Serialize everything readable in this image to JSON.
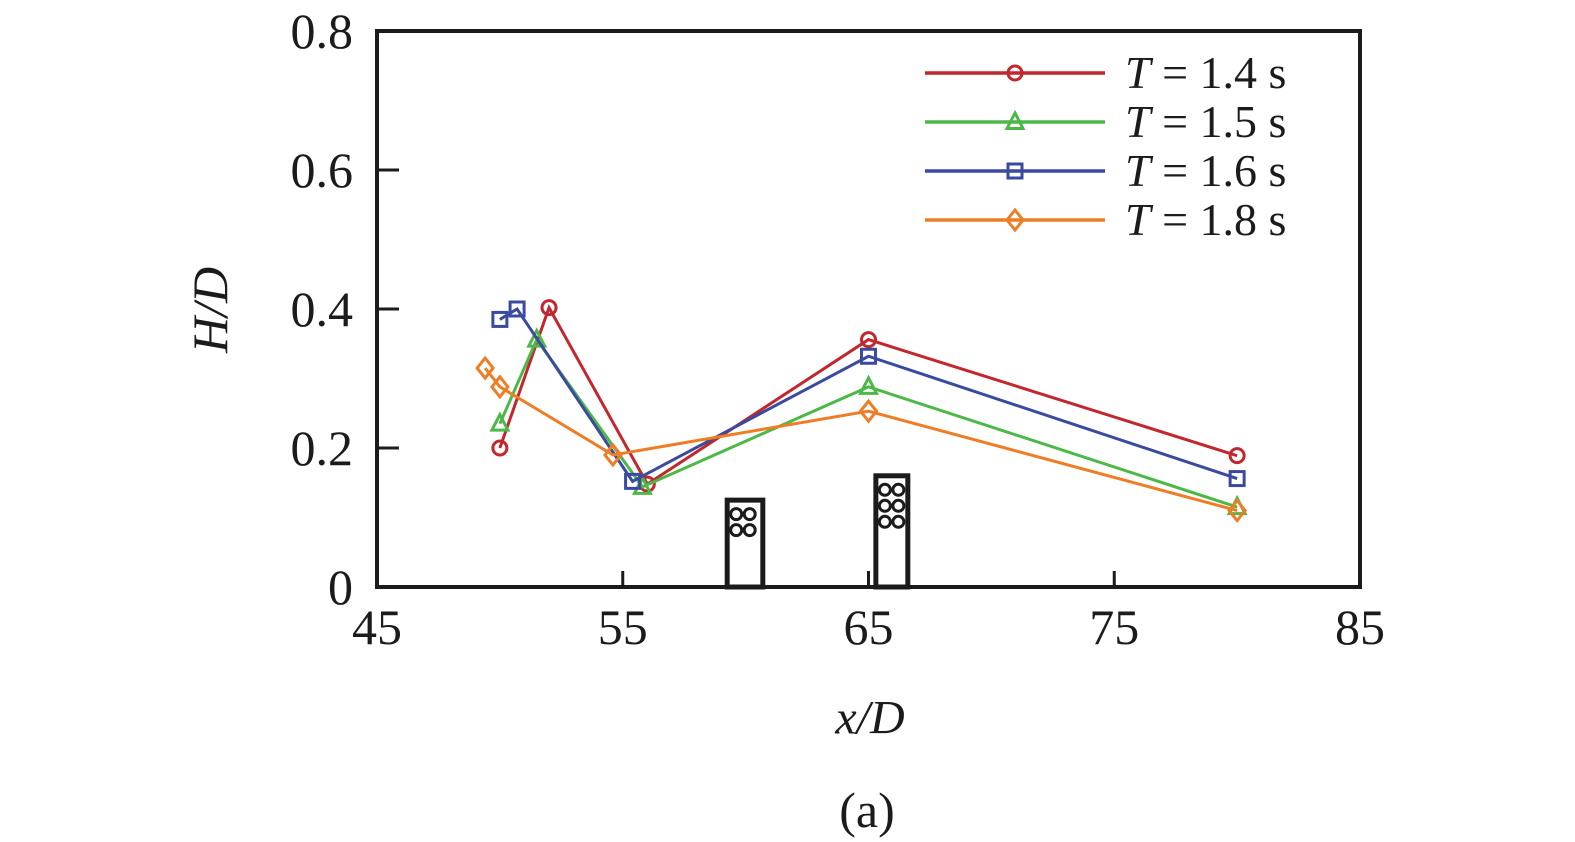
{
  "figure": {
    "caption": "(a)",
    "background_color": "#ffffff",
    "axis_color": "#1b1b1b",
    "text_color": "#1b1b1b"
  },
  "chart_data": {
    "type": "line",
    "title": "",
    "xlabel": "x/D",
    "ylabel": "H/D",
    "xlim": [
      45,
      85
    ],
    "ylim": [
      0,
      0.8
    ],
    "grid": false,
    "legend_position": "top-right",
    "x_ticks": [
      {
        "value": 45,
        "label": "45"
      },
      {
        "value": 55,
        "label": "55"
      },
      {
        "value": 65,
        "label": "65"
      },
      {
        "value": 75,
        "label": "75"
      },
      {
        "value": 85,
        "label": "85"
      }
    ],
    "y_ticks": [
      {
        "value": 0,
        "label": "0"
      },
      {
        "value": 0.2,
        "label": "0.2"
      },
      {
        "value": 0.4,
        "label": "0.4"
      },
      {
        "value": 0.6,
        "label": "0.6"
      },
      {
        "value": 0.8,
        "label": "0.8"
      }
    ],
    "series": [
      {
        "name": "T = 1.4 s",
        "color": "#c1272d",
        "marker": "circle",
        "points": [
          [
            50,
            0.2
          ],
          [
            52,
            0.402
          ],
          [
            56,
            0.148
          ],
          [
            65,
            0.356
          ],
          [
            80,
            0.189
          ]
        ]
      },
      {
        "name": "T = 1.5 s",
        "color": "#4db848",
        "marker": "triangle",
        "points": [
          [
            50,
            0.235
          ],
          [
            51.5,
            0.356
          ],
          [
            55.8,
            0.144
          ],
          [
            65,
            0.288
          ],
          [
            80,
            0.115
          ]
        ]
      },
      {
        "name": "T = 1.6 s",
        "color": "#3a4aa0",
        "marker": "square",
        "points": [
          [
            50,
            0.385
          ],
          [
            50.7,
            0.4
          ],
          [
            55.4,
            0.152
          ],
          [
            65,
            0.332
          ],
          [
            80,
            0.156
          ]
        ]
      },
      {
        "name": "T = 1.8 s",
        "color": "#ef7d25",
        "marker": "diamond",
        "points": [
          [
            49.4,
            0.315
          ],
          [
            50,
            0.288
          ],
          [
            54.6,
            0.19
          ],
          [
            65,
            0.253
          ],
          [
            80,
            0.11
          ]
        ]
      }
    ],
    "obstacles": [
      {
        "name": "cylinder-structure-1",
        "x_range": [
          59.25,
          60.7
        ],
        "height": 0.125,
        "circle_rows": 2,
        "circle_cols": 2
      },
      {
        "name": "cylinder-structure-2",
        "x_range": [
          65.3,
          66.6
        ],
        "height": 0.16,
        "circle_rows": 3,
        "circle_cols": 2
      }
    ]
  }
}
